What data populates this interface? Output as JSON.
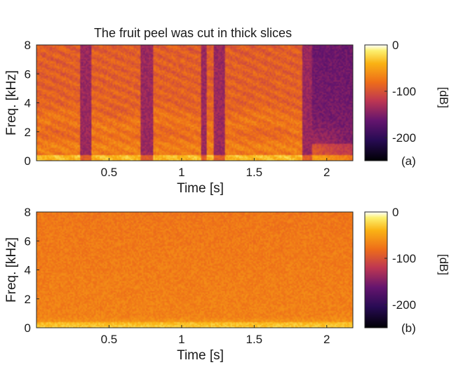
{
  "chart_data": [
    {
      "type": "heatmap",
      "panel_label": "(a)",
      "title": "The fruit peel was cut in thick slices",
      "xlabel": "Time [s]",
      "ylabel": "Freq. [kHz]",
      "xlim": [
        0,
        2.18
      ],
      "ylim": [
        0,
        8
      ],
      "x_ticks": [
        "0.5",
        "1",
        "1.5",
        "2"
      ],
      "x_tick_values": [
        0.5,
        1,
        1.5,
        2
      ],
      "y_ticks": [
        "0",
        "2",
        "4",
        "6",
        "8"
      ],
      "y_tick_values": [
        0,
        2,
        4,
        6,
        8
      ],
      "colorbar": {
        "label": "[dB]",
        "range": [
          -250,
          0
        ],
        "ticks": [
          "0",
          "-100",
          "-200"
        ],
        "tick_values": [
          0,
          -100,
          -200
        ]
      },
      "content": "speech",
      "speech_segments_s": [
        [
          0.0,
          0.3
        ],
        [
          0.38,
          0.72
        ],
        [
          0.8,
          1.13
        ],
        [
          1.17,
          1.22
        ],
        [
          1.3,
          1.83
        ]
      ],
      "trailing_silence_s": [
        1.9,
        2.18
      ]
    },
    {
      "type": "heatmap",
      "panel_label": "(b)",
      "title": "",
      "xlabel": "Time [s]",
      "ylabel": "Freq. [kHz]",
      "xlim": [
        0,
        2.18
      ],
      "ylim": [
        0,
        8
      ],
      "x_ticks": [
        "0.5",
        "1",
        "1.5",
        "2"
      ],
      "x_tick_values": [
        0.5,
        1,
        1.5,
        2
      ],
      "y_ticks": [
        "0",
        "2",
        "4",
        "6",
        "8"
      ],
      "y_tick_values": [
        0,
        2,
        4,
        6,
        8
      ],
      "colorbar": {
        "label": "[dB]",
        "range": [
          -250,
          0
        ],
        "ticks": [
          "0",
          "-100",
          "-200"
        ],
        "tick_values": [
          0,
          -100,
          -200
        ]
      },
      "content": "noise"
    }
  ]
}
